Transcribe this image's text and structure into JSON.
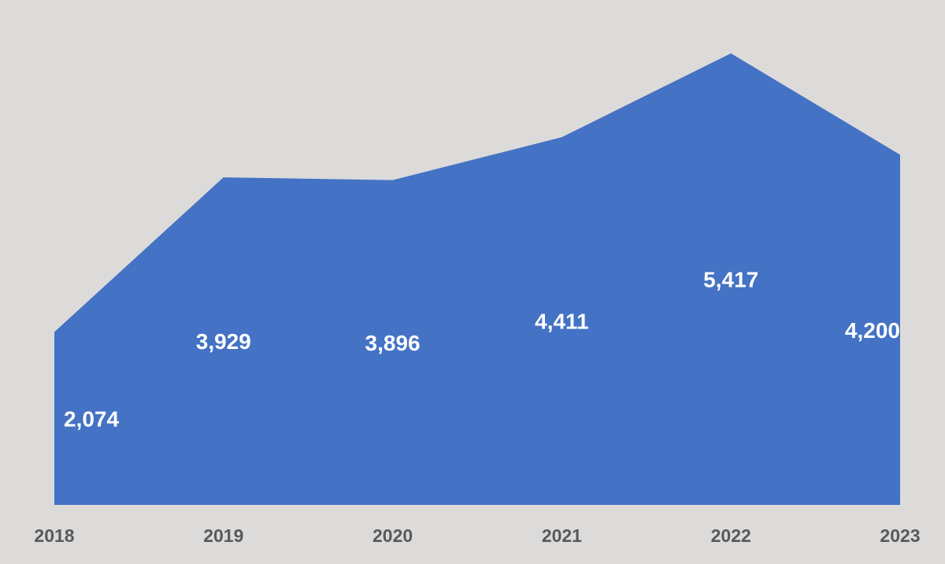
{
  "chart_data": {
    "type": "area",
    "categories": [
      "2018",
      "2019",
      "2020",
      "2021",
      "2022",
      "2023"
    ],
    "values": [
      2074,
      3929,
      3896,
      4411,
      5417,
      4200
    ],
    "data_labels": [
      "2,074",
      "3,929",
      "3,896",
      "4,411",
      "5,417",
      "4,200"
    ],
    "title": "",
    "xlabel": "",
    "ylabel": "",
    "ylim": [
      0,
      6000
    ],
    "grid": false,
    "legend": "none",
    "colors": {
      "area": "#4472c4",
      "background": "#dcdbda",
      "data_label": "#ffffff",
      "tick_label": "#595959"
    }
  }
}
